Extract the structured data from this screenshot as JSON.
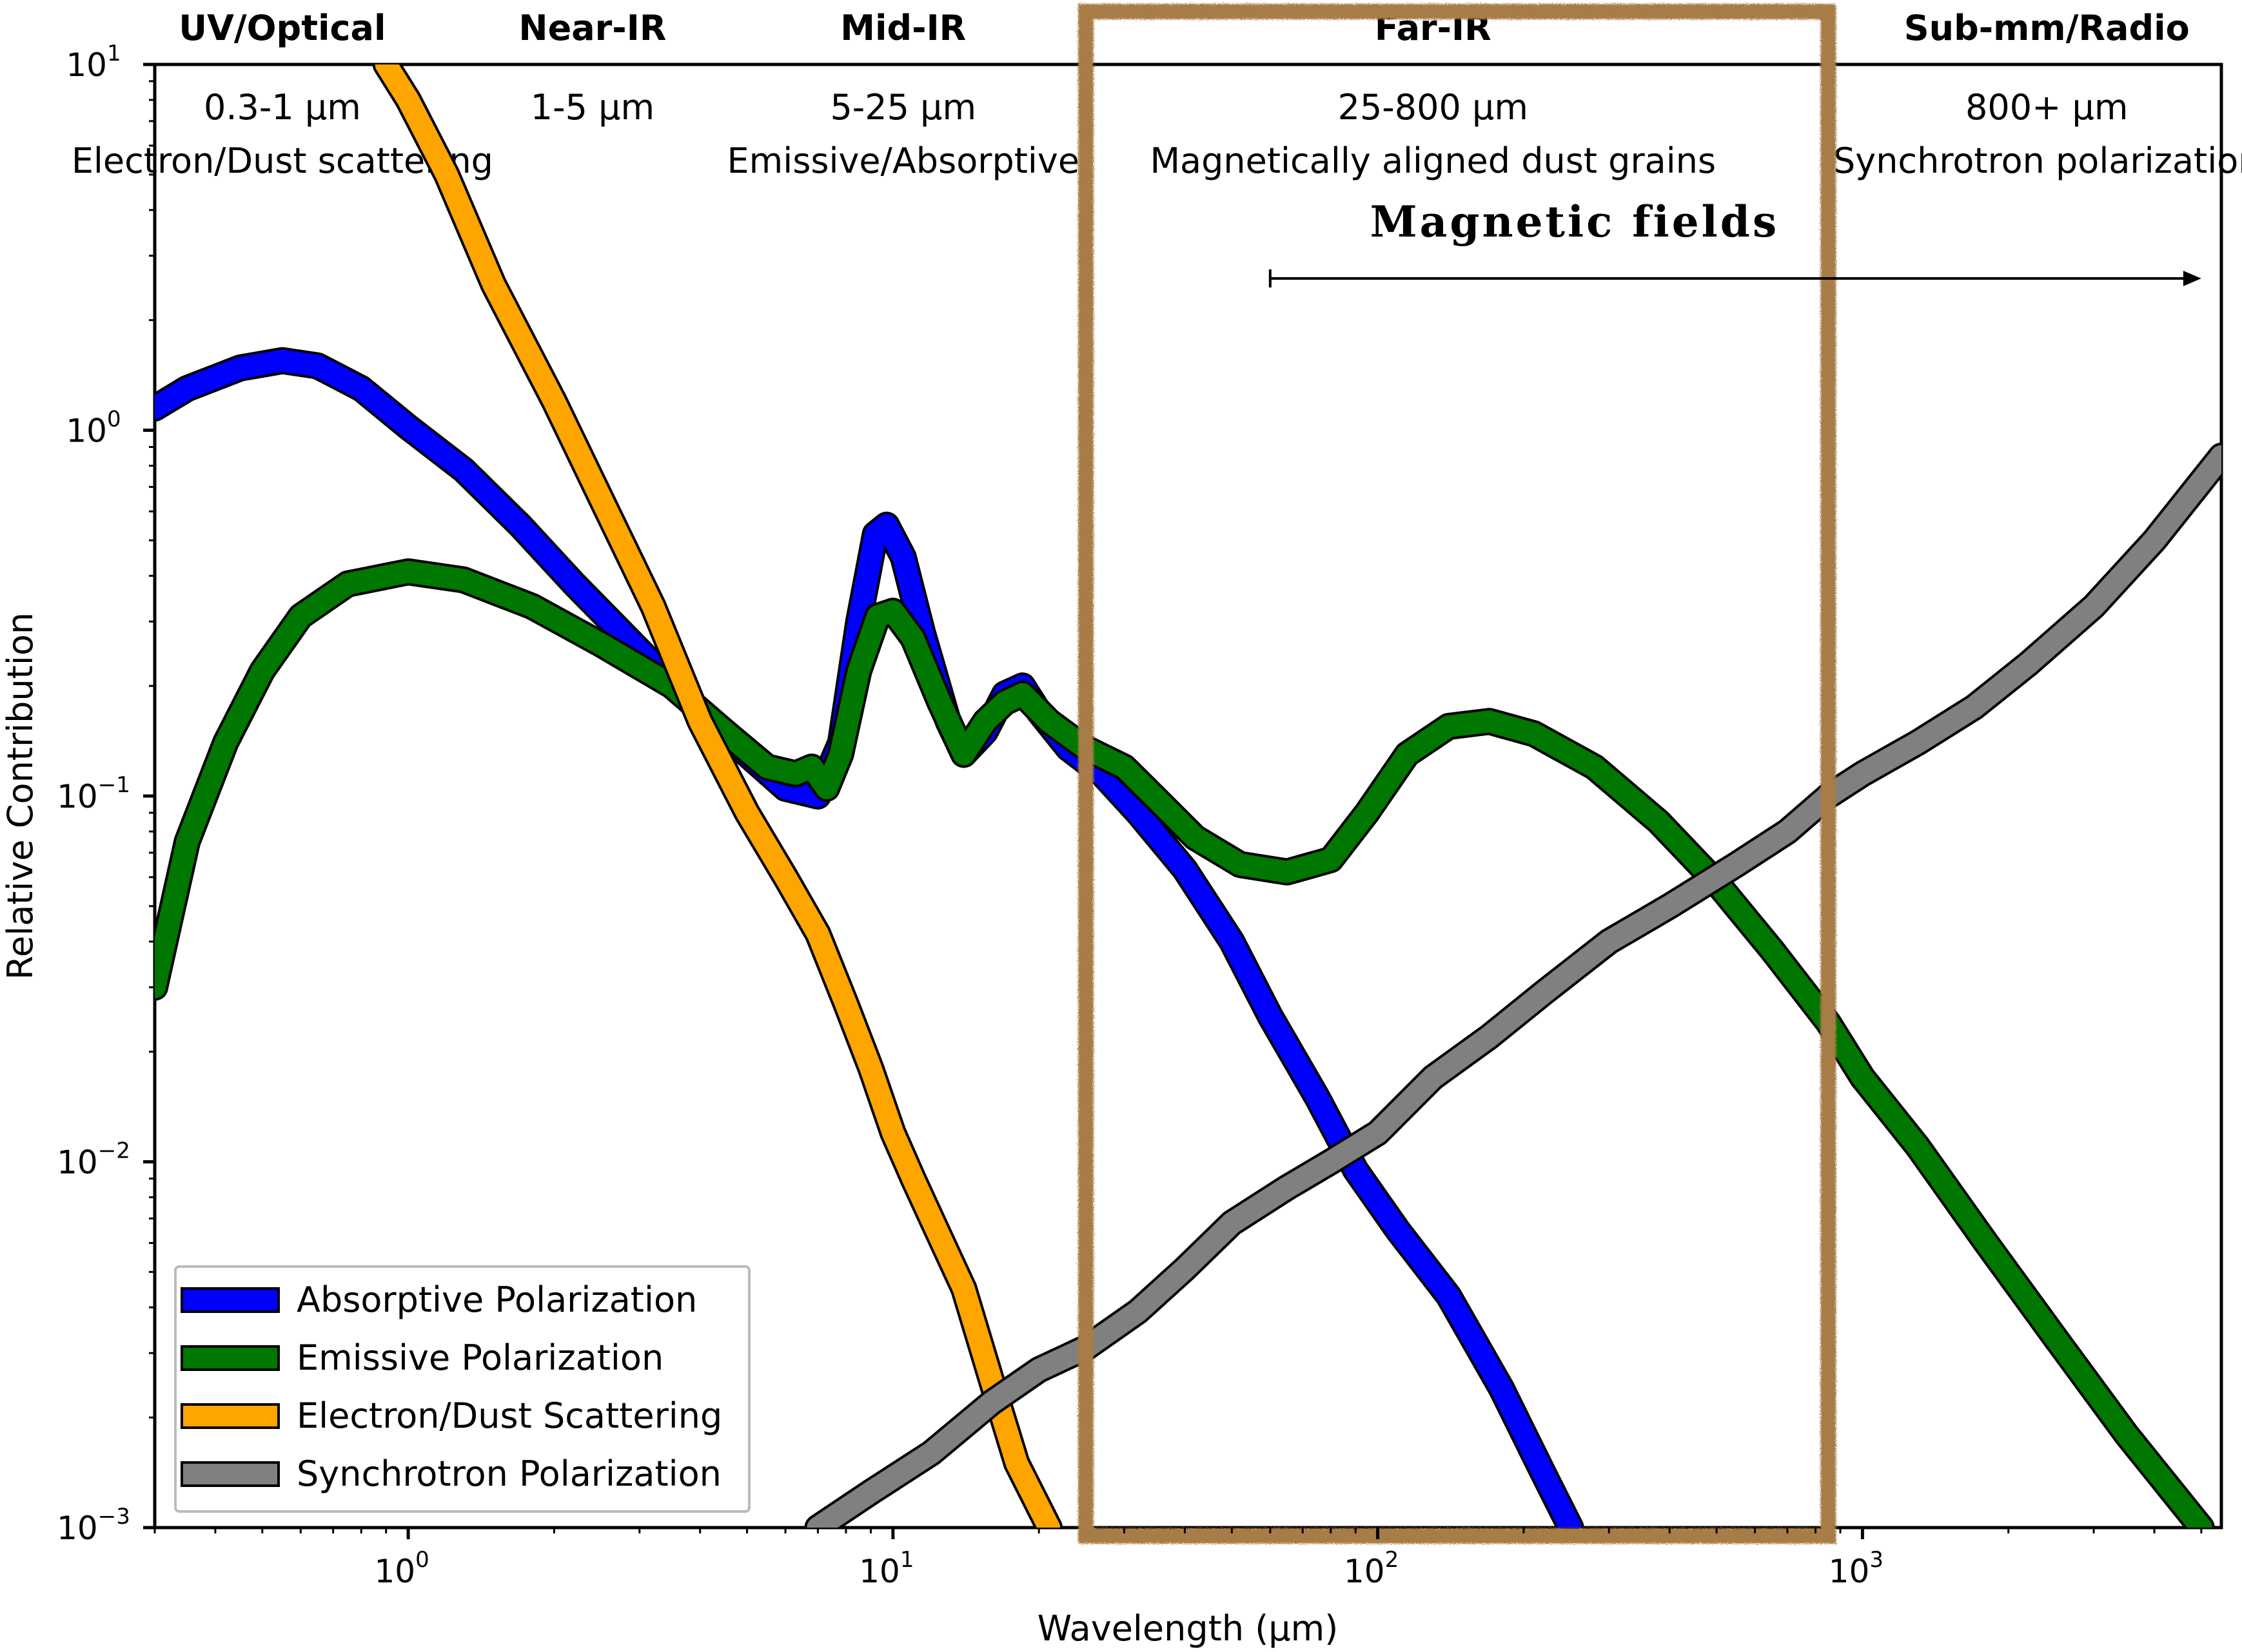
{
  "chart_data": {
    "type": "line",
    "xlabel": "Wavelength (μm)",
    "ylabel": "Relative Contribution",
    "xscale": "log",
    "yscale": "log",
    "xlim": [
      0.3,
      5500
    ],
    "ylim": [
      0.001,
      10
    ],
    "x_ticks": [
      {
        "value": 1,
        "base": "10",
        "exp": "0"
      },
      {
        "value": 10,
        "base": "10",
        "exp": "1"
      },
      {
        "value": 100,
        "base": "10",
        "exp": "2"
      },
      {
        "value": 1000,
        "base": "10",
        "exp": "3"
      }
    ],
    "y_ticks": [
      {
        "value": 10,
        "base": "10",
        "exp": "1"
      },
      {
        "value": 1,
        "base": "10",
        "exp": "0"
      },
      {
        "value": 0.1,
        "base": "10",
        "exp": "−1"
      },
      {
        "value": 0.01,
        "base": "10",
        "exp": "−2"
      },
      {
        "value": 0.001,
        "base": "10",
        "exp": "−3"
      }
    ],
    "grid": false,
    "legend_position": "lower-left",
    "bands": [
      {
        "name": "UV/Optical",
        "range": "0.3-1 μm",
        "mechanism": "Electron/Dust scattering",
        "x_center": 0.55
      },
      {
        "name": "Near-IR",
        "range": "1-5 μm",
        "mechanism": "",
        "x_center": 2.4
      },
      {
        "name": "Mid-IR",
        "range": "5-25 μm",
        "mechanism": "Emissive/Absorptive",
        "x_center": 10.5
      },
      {
        "name": "Far-IR",
        "range": "25-800 μm",
        "mechanism": "Magnetically aligned dust grains",
        "x_center": 130
      },
      {
        "name": "Sub-mm/Radio",
        "range": "800+ μm",
        "mechanism": "Synchrotron polarization",
        "x_center": 2400
      }
    ],
    "highlight_region": {
      "x": [
        25,
        850
      ],
      "color": "#a87b46"
    },
    "annotation": {
      "text": "Magnetic fields",
      "arrow_x": [
        60,
        5000
      ],
      "y": 2.6
    },
    "series": [
      {
        "name": "Absorptive Polarization",
        "color": "#0000ff",
        "points": [
          [
            0.3,
            1.15
          ],
          [
            0.35,
            1.3
          ],
          [
            0.45,
            1.48
          ],
          [
            0.55,
            1.55
          ],
          [
            0.65,
            1.5
          ],
          [
            0.8,
            1.3
          ],
          [
            1.0,
            1.02
          ],
          [
            1.3,
            0.78
          ],
          [
            1.7,
            0.55
          ],
          [
            2.2,
            0.38
          ],
          [
            3.0,
            0.25
          ],
          [
            4.0,
            0.17
          ],
          [
            5.0,
            0.13
          ],
          [
            6.0,
            0.105
          ],
          [
            7.0,
            0.1
          ],
          [
            7.8,
            0.14
          ],
          [
            8.5,
            0.3
          ],
          [
            9.2,
            0.52
          ],
          [
            9.7,
            0.55
          ],
          [
            10.5,
            0.45
          ],
          [
            11.5,
            0.28
          ],
          [
            13,
            0.16
          ],
          [
            14,
            0.13
          ],
          [
            15.5,
            0.15
          ],
          [
            17,
            0.19
          ],
          [
            18.5,
            0.2
          ],
          [
            20,
            0.17
          ],
          [
            23,
            0.135
          ],
          [
            27,
            0.115
          ],
          [
            32,
            0.09
          ],
          [
            40,
            0.063
          ],
          [
            50,
            0.04
          ],
          [
            60,
            0.025
          ],
          [
            75,
            0.015
          ],
          [
            90,
            0.0095
          ],
          [
            110,
            0.0065
          ],
          [
            140,
            0.0043
          ],
          [
            180,
            0.0024
          ],
          [
            220,
            0.0014
          ],
          [
            250,
            0.001
          ]
        ]
      },
      {
        "name": "Emissive Polarization",
        "color": "#007700",
        "points": [
          [
            0.3,
            0.03
          ],
          [
            0.35,
            0.075
          ],
          [
            0.42,
            0.14
          ],
          [
            0.5,
            0.22
          ],
          [
            0.6,
            0.31
          ],
          [
            0.75,
            0.38
          ],
          [
            1.0,
            0.41
          ],
          [
            1.3,
            0.39
          ],
          [
            1.8,
            0.33
          ],
          [
            2.5,
            0.26
          ],
          [
            3.5,
            0.2
          ],
          [
            4.5,
            0.15
          ],
          [
            5.5,
            0.12
          ],
          [
            6.3,
            0.115
          ],
          [
            6.8,
            0.12
          ],
          [
            7.3,
            0.105
          ],
          [
            7.8,
            0.13
          ],
          [
            8.5,
            0.22
          ],
          [
            9.3,
            0.31
          ],
          [
            10,
            0.32
          ],
          [
            11,
            0.27
          ],
          [
            12.5,
            0.18
          ],
          [
            14,
            0.13
          ],
          [
            15.5,
            0.16
          ],
          [
            17,
            0.18
          ],
          [
            18.5,
            0.19
          ],
          [
            21,
            0.16
          ],
          [
            25,
            0.135
          ],
          [
            30,
            0.12
          ],
          [
            35,
            0.098
          ],
          [
            42,
            0.077
          ],
          [
            52,
            0.065
          ],
          [
            65,
            0.062
          ],
          [
            80,
            0.067
          ],
          [
            95,
            0.09
          ],
          [
            115,
            0.13
          ],
          [
            140,
            0.155
          ],
          [
            170,
            0.16
          ],
          [
            210,
            0.148
          ],
          [
            280,
            0.12
          ],
          [
            380,
            0.085
          ],
          [
            500,
            0.058
          ],
          [
            650,
            0.038
          ],
          [
            850,
            0.024
          ],
          [
            1000,
            0.017
          ],
          [
            1300,
            0.011
          ],
          [
            1800,
            0.006
          ],
          [
            2500,
            0.0033
          ],
          [
            3500,
            0.0018
          ],
          [
            5000,
            0.001
          ]
        ]
      },
      {
        "name": "Electron/Dust Scattering",
        "color": "#ffa500",
        "points": [
          [
            0.9,
            10
          ],
          [
            1.0,
            8.0
          ],
          [
            1.2,
            5.0
          ],
          [
            1.5,
            2.5
          ],
          [
            2.0,
            1.2
          ],
          [
            2.5,
            0.65
          ],
          [
            3.2,
            0.33
          ],
          [
            4.0,
            0.16
          ],
          [
            5.0,
            0.09
          ],
          [
            6.0,
            0.06
          ],
          [
            7.0,
            0.042
          ],
          [
            8.0,
            0.027
          ],
          [
            9.0,
            0.018
          ],
          [
            10,
            0.012
          ],
          [
            11,
            0.009
          ],
          [
            12,
            0.007
          ],
          [
            14,
            0.0045
          ],
          [
            16,
            0.0025
          ],
          [
            18,
            0.0015
          ],
          [
            21,
            0.001
          ]
        ]
      },
      {
        "name": "Synchrotron Polarization",
        "color": "#808080",
        "points": [
          [
            7,
            0.001
          ],
          [
            9,
            0.00125
          ],
          [
            12,
            0.0016
          ],
          [
            16,
            0.0022
          ],
          [
            20,
            0.0027
          ],
          [
            25,
            0.0031
          ],
          [
            32,
            0.0039
          ],
          [
            40,
            0.0051
          ],
          [
            50,
            0.0068
          ],
          [
            65,
            0.0085
          ],
          [
            80,
            0.01
          ],
          [
            100,
            0.012
          ],
          [
            130,
            0.017
          ],
          [
            170,
            0.022
          ],
          [
            220,
            0.029
          ],
          [
            300,
            0.04
          ],
          [
            400,
            0.05
          ],
          [
            550,
            0.065
          ],
          [
            700,
            0.08
          ],
          [
            850,
            0.1
          ],
          [
            1000,
            0.115
          ],
          [
            1300,
            0.14
          ],
          [
            1700,
            0.175
          ],
          [
            2200,
            0.23
          ],
          [
            3000,
            0.33
          ],
          [
            4000,
            0.5
          ],
          [
            5500,
            0.85
          ]
        ]
      }
    ]
  }
}
